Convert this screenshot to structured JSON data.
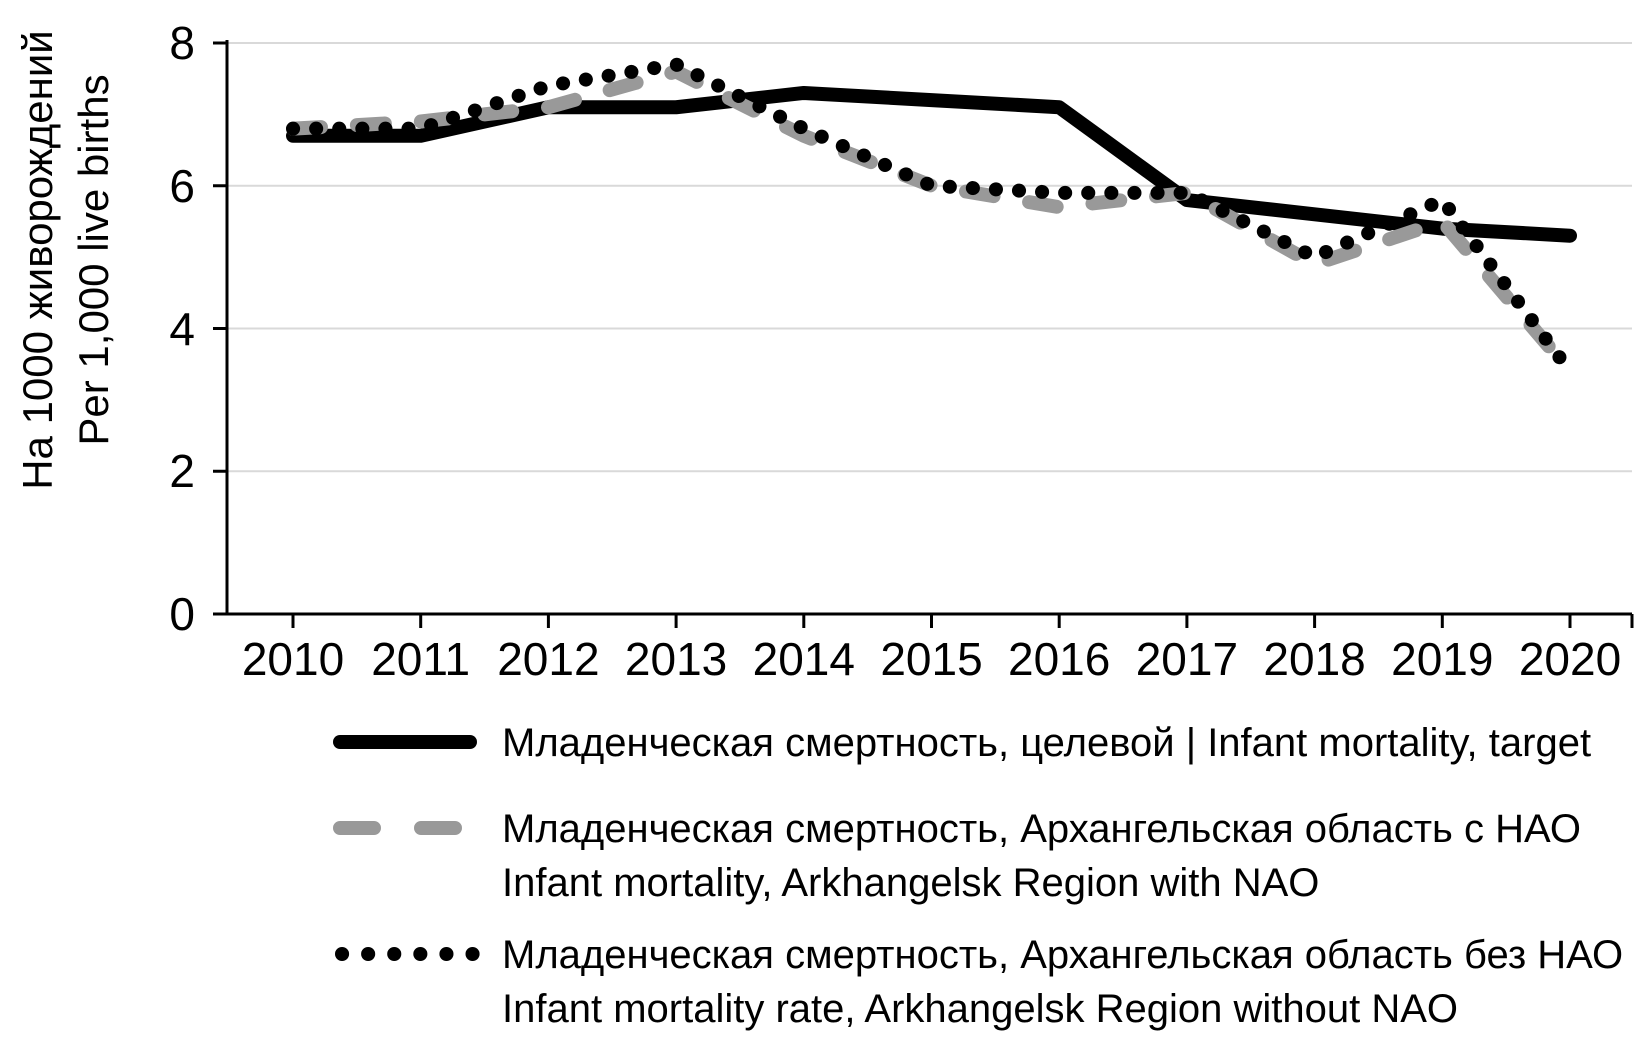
{
  "y_axis_title": {
    "line1": "На 1000 живорождений",
    "line2": "Per 1,000 live births"
  },
  "chart_data": {
    "type": "line",
    "x": [
      2010,
      2011,
      2012,
      2013,
      2014,
      2015,
      2016,
      2017,
      2018,
      2019,
      2020
    ],
    "series": [
      {
        "name": "Младенческая смертность, целевой | Infant mortality, target",
        "style": "solid-black",
        "color": "#000000",
        "values": [
          6.7,
          6.7,
          7.1,
          7.1,
          7.3,
          7.2,
          7.1,
          5.8,
          5.6,
          5.4,
          5.3
        ]
      },
      {
        "name": "Младенческая смертность, Архангельская область с НАО / Infant mortality, Arkhangelsk Region with NAO",
        "style": "dashed-gray",
        "color": "#999999",
        "values": [
          6.8,
          6.9,
          7.1,
          7.6,
          6.7,
          6.0,
          5.7,
          5.9,
          4.9,
          5.5,
          3.4
        ]
      },
      {
        "name": "Младенческая смертность, Архангельская область без НАО / Infant mortality rate, Arkhangelsk Region without NAO",
        "style": "dotted-black",
        "color": "#000000",
        "values": [
          6.8,
          6.8,
          7.4,
          7.7,
          6.8,
          6.0,
          5.9,
          5.9,
          5.0,
          5.8,
          3.4
        ]
      }
    ],
    "ylabel": "На 1000 живорождений / Per 1,000 live births",
    "xlabel": "",
    "yticks": [
      0,
      2,
      4,
      6,
      8
    ],
    "ylim": [
      0,
      8
    ],
    "grid": true,
    "legend_position": "bottom-left"
  },
  "legend": {
    "entries": [
      {
        "line1": "Младенческая смертность, целевой | Infant mortality, target",
        "line2": ""
      },
      {
        "line1": "Младенческая смертность, Архангельская область с НАО",
        "line2": "Infant mortality, Arkhangelsk Region with NAO"
      },
      {
        "line1": "Младенческая смертность, Архангельская область без НАО",
        "line2": "Infant mortality rate, Arkhangelsk Region without NAO"
      }
    ]
  },
  "colors": {
    "target_line": "#000000",
    "with_nao_line": "#999999",
    "without_nao_line": "#000000",
    "gridline": "#d9d9d9",
    "axis": "#000000"
  }
}
